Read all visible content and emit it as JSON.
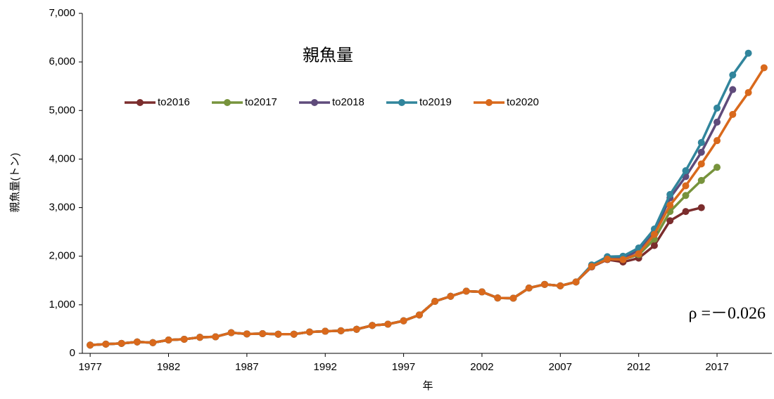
{
  "chart_data": {
    "type": "line",
    "title": "親魚量",
    "x_label": "年",
    "y_label": "親魚量(トン)",
    "x": [
      1977,
      1978,
      1979,
      1980,
      1981,
      1982,
      1983,
      1984,
      1985,
      1986,
      1987,
      1988,
      1989,
      1990,
      1991,
      1992,
      1993,
      1994,
      1995,
      1996,
      1997,
      1998,
      1999,
      2000,
      2001,
      2002,
      2003,
      2004,
      2005,
      2006,
      2007,
      2008,
      2009,
      2010,
      2011,
      2012,
      2013,
      2014,
      2015,
      2016,
      2017,
      2018,
      2019,
      2020
    ],
    "xlim": [
      1976.5,
      2020.5
    ],
    "xticks": [
      1977,
      1982,
      1987,
      1992,
      1997,
      2002,
      2007,
      2012,
      2017
    ],
    "ylim": [
      0,
      7000
    ],
    "yticks": [
      0,
      {
        "value": 1000,
        "label": "1,000"
      },
      {
        "value": 2000,
        "label": "2,000"
      },
      {
        "value": 3000,
        "label": "3,000"
      },
      {
        "value": 4000,
        "label": "4,000"
      },
      {
        "value": 5000,
        "label": "5,000"
      },
      {
        "value": 6000,
        "label": "6,000"
      },
      {
        "value": 7000,
        "label": "7,000"
      }
    ],
    "legend_position": "upper left",
    "series": [
      {
        "name": "to2016",
        "color": "#7b2d2d",
        "values": [
          170,
          190,
          205,
          235,
          220,
          275,
          290,
          330,
          340,
          425,
          400,
          405,
          395,
          395,
          440,
          455,
          465,
          495,
          575,
          600,
          670,
          790,
          1070,
          1175,
          1280,
          1265,
          1140,
          1135,
          1345,
          1420,
          1390,
          1470,
          1780,
          1930,
          1880,
          1960,
          2220,
          2730,
          2920,
          3000,
          null,
          null,
          null,
          null
        ]
      },
      {
        "name": "to2017",
        "color": "#77933c",
        "values": [
          170,
          190,
          205,
          235,
          220,
          275,
          290,
          330,
          340,
          425,
          400,
          405,
          395,
          395,
          440,
          455,
          465,
          495,
          575,
          600,
          670,
          790,
          1070,
          1175,
          1280,
          1265,
          1140,
          1135,
          1345,
          1420,
          1390,
          1470,
          1800,
          1950,
          1930,
          2030,
          2350,
          2920,
          3250,
          3560,
          3830,
          null,
          null,
          null
        ]
      },
      {
        "name": "to2018",
        "color": "#5f4b7b",
        "values": [
          170,
          190,
          205,
          235,
          220,
          275,
          290,
          330,
          340,
          425,
          400,
          405,
          395,
          395,
          440,
          455,
          465,
          495,
          575,
          600,
          670,
          790,
          1070,
          1175,
          1280,
          1265,
          1140,
          1135,
          1345,
          1420,
          1390,
          1470,
          1810,
          1980,
          1960,
          2120,
          2500,
          3200,
          3640,
          4140,
          4760,
          5430,
          null,
          null
        ]
      },
      {
        "name": "to2019",
        "color": "#31859c",
        "values": [
          170,
          190,
          205,
          235,
          220,
          275,
          290,
          330,
          340,
          425,
          400,
          405,
          395,
          395,
          440,
          455,
          465,
          495,
          575,
          600,
          670,
          790,
          1070,
          1175,
          1280,
          1265,
          1140,
          1135,
          1345,
          1420,
          1390,
          1470,
          1820,
          1990,
          2000,
          2170,
          2560,
          3270,
          3760,
          4340,
          5050,
          5730,
          6180,
          null
        ]
      },
      {
        "name": "to2020",
        "color": "#d9691c",
        "values": [
          170,
          190,
          205,
          235,
          220,
          275,
          290,
          330,
          340,
          425,
          400,
          405,
          395,
          395,
          440,
          455,
          465,
          495,
          575,
          600,
          670,
          790,
          1070,
          1175,
          1280,
          1265,
          1140,
          1135,
          1345,
          1420,
          1390,
          1470,
          1790,
          1940,
          1930,
          2050,
          2450,
          3050,
          3450,
          3900,
          4380,
          4920,
          5370,
          5880
        ]
      }
    ],
    "annotations": [
      {
        "text": "ρ =－0.026"
      }
    ]
  }
}
